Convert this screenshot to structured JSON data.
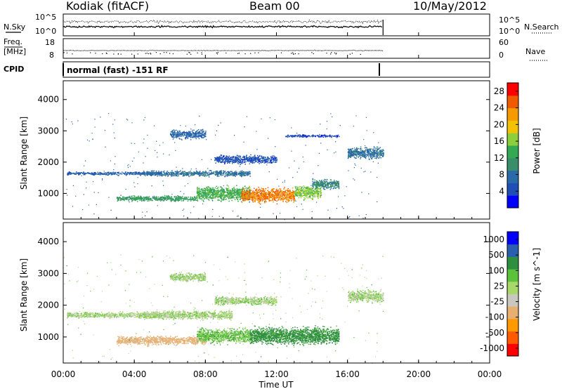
{
  "header": {
    "station": "Kodiak (fitACF)",
    "beam": "Beam 00",
    "date": "10/May/2012"
  },
  "strips": {
    "nsky_label": "N.Sky",
    "nsearch_label": "N.Search",
    "noise_ticks": [
      "10^5",
      "10^0"
    ],
    "freq_label_1": "Freq.",
    "freq_label_2": "[MHz]",
    "freq_ticks": [
      "18",
      "8"
    ],
    "nave_label": "Nave",
    "nave_ticks": [
      "60",
      "0"
    ],
    "cpid_label": "CPID",
    "cpid_value": "normal (fast) -151 RF"
  },
  "colors": {
    "power": [
      "#0000ff",
      "#1f4fb4",
      "#2a6aa8",
      "#3a8f6a",
      "#34a853",
      "#8ccf3a",
      "#f2c200",
      "#f59a00",
      "#f05a00",
      "#ff0000"
    ],
    "velocity": [
      "#ff0000",
      "#ff5a00",
      "#ff9900",
      "#e8b070",
      "#c8c8be",
      "#a8d868",
      "#5cc23c",
      "#2e8f3e",
      "#2a5fb0",
      "#0000ff"
    ]
  },
  "chart_data": [
    {
      "type": "heatmap",
      "panel": "power",
      "xlabel": "",
      "ylabel": "Slant Range [km]",
      "x_ticks": [
        "00:00",
        "04:00",
        "08:00",
        "12:00",
        "16:00",
        "20:00",
        "00:00"
      ],
      "x_range_hours": [
        0,
        24
      ],
      "y_ticks": [
        1000,
        2000,
        3000,
        4000
      ],
      "ylim": [
        180,
        4600
      ],
      "colorbar_label": "Power [dB]",
      "colorbar_ticks": [
        "4",
        "8",
        "12",
        "16",
        "20",
        "24",
        "28"
      ],
      "colorbar_range": [
        0,
        30
      ],
      "data_extent_hours": [
        0,
        18
      ],
      "scatter_bands": [
        {
          "t_start": 0.2,
          "t_end": 5.5,
          "range_center": 1650,
          "range_width": 120,
          "power": 6
        },
        {
          "t_start": 4.5,
          "t_end": 10.5,
          "range_center": 1650,
          "range_width": 200,
          "power": 8
        },
        {
          "t_start": 7.5,
          "t_end": 10.5,
          "range_center": 1000,
          "range_width": 500,
          "power": 14
        },
        {
          "t_start": 10.0,
          "t_end": 13.0,
          "range_center": 950,
          "range_width": 500,
          "power": 24
        },
        {
          "t_start": 13.0,
          "t_end": 14.5,
          "range_center": 1050,
          "range_width": 450,
          "power": 16
        },
        {
          "t_start": 14.0,
          "t_end": 15.5,
          "range_center": 1300,
          "range_width": 350,
          "power": 10
        },
        {
          "t_start": 6.0,
          "t_end": 8.0,
          "range_center": 2900,
          "range_width": 300,
          "power": 7
        },
        {
          "t_start": 8.5,
          "t_end": 12.0,
          "range_center": 2100,
          "range_width": 300,
          "power": 5
        },
        {
          "t_start": 3.0,
          "t_end": 7.5,
          "range_center": 850,
          "range_width": 200,
          "power": 12
        },
        {
          "t_start": 16.0,
          "t_end": 18.0,
          "range_center": 2300,
          "range_width": 400,
          "power": 8
        },
        {
          "t_start": 12.5,
          "t_end": 15.5,
          "range_center": 2850,
          "range_width": 100,
          "power": 4
        }
      ]
    },
    {
      "type": "heatmap",
      "panel": "velocity",
      "xlabel": "Time UT",
      "ylabel": "Slant Range [km]",
      "x_ticks": [
        "00:00",
        "04:00",
        "08:00",
        "12:00",
        "16:00",
        "20:00",
        "00:00"
      ],
      "x_range_hours": [
        0,
        24
      ],
      "y_ticks": [
        1000,
        2000,
        3000,
        4000
      ],
      "ylim": [
        180,
        4600
      ],
      "colorbar_label": "Velocity [m s^-1]",
      "colorbar_ticks": [
        "1000",
        "500",
        "100",
        "25",
        "-25",
        "-100",
        "-500",
        "-1000"
      ],
      "data_extent_hours": [
        0,
        18
      ],
      "scatter_bands": [
        {
          "t_start": 0.2,
          "t_end": 5.5,
          "range_center": 1700,
          "range_width": 200,
          "velocity": 0
        },
        {
          "t_start": 4.5,
          "t_end": 9.5,
          "range_center": 1700,
          "range_width": 300,
          "velocity": 0
        },
        {
          "t_start": 3.0,
          "t_end": 8.0,
          "range_center": 900,
          "range_width": 300,
          "velocity": -150
        },
        {
          "t_start": 7.5,
          "t_end": 10.5,
          "range_center": 1050,
          "range_width": 500,
          "velocity": 60
        },
        {
          "t_start": 10.5,
          "t_end": 15.5,
          "range_center": 1050,
          "range_width": 600,
          "velocity": 150
        },
        {
          "t_start": 6.0,
          "t_end": 8.0,
          "range_center": 2900,
          "range_width": 300,
          "velocity": 0
        },
        {
          "t_start": 8.5,
          "t_end": 12.0,
          "range_center": 2150,
          "range_width": 300,
          "velocity": 0
        },
        {
          "t_start": 16.0,
          "t_end": 18.0,
          "range_center": 2300,
          "range_width": 400,
          "velocity": 0
        }
      ]
    }
  ]
}
